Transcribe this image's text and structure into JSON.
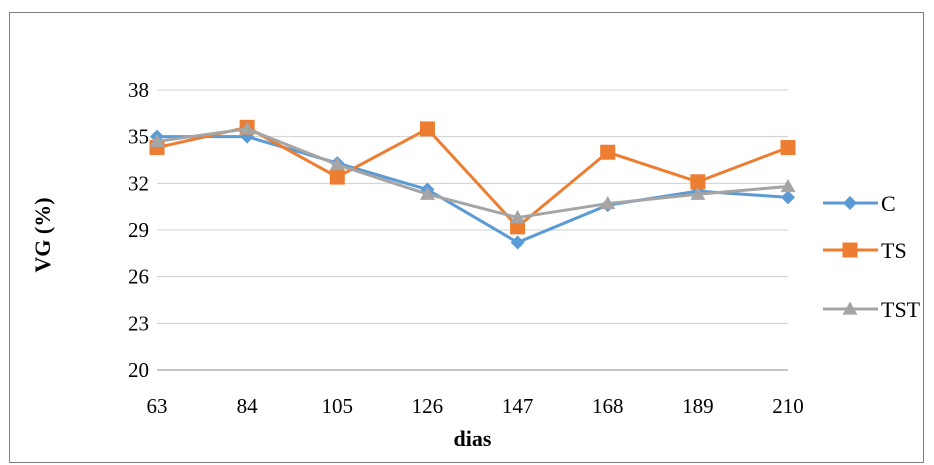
{
  "chart_data": {
    "type": "line",
    "x": [
      63,
      84,
      105,
      126,
      147,
      168,
      189,
      210
    ],
    "categories": [
      "63",
      "84",
      "105",
      "126",
      "147",
      "168",
      "189",
      "210"
    ],
    "xlabel": "dias",
    "ylabel": "VG (%)",
    "ylim": [
      20,
      38
    ],
    "yticks": [
      20,
      23,
      26,
      29,
      32,
      35,
      38
    ],
    "grid": true,
    "legend_position": "right",
    "series": [
      {
        "name": "C",
        "color": "#5B9BD5",
        "marker": "diamond",
        "values": [
          35.0,
          35.0,
          33.3,
          31.6,
          28.2,
          30.6,
          31.5,
          31.1
        ]
      },
      {
        "name": "TS",
        "color": "#ED7D31",
        "marker": "square",
        "values": [
          34.3,
          35.6,
          32.4,
          35.5,
          29.2,
          34.0,
          32.1,
          34.3
        ]
      },
      {
        "name": "TST",
        "color": "#A5A5A5",
        "marker": "triangle",
        "values": [
          34.7,
          35.5,
          33.2,
          31.3,
          29.8,
          30.7,
          31.3,
          31.8
        ]
      }
    ]
  }
}
